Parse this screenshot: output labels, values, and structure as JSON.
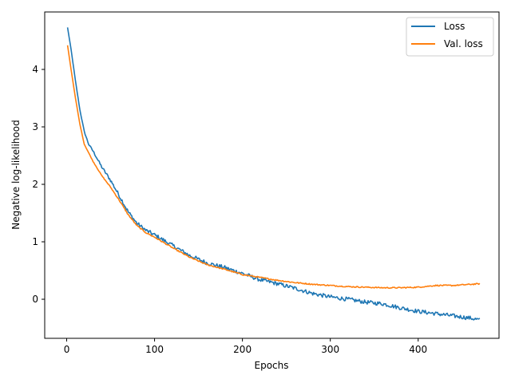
{
  "chart_data": {
    "type": "line",
    "xlabel": "Epochs",
    "ylabel": "Negative log-likelihood",
    "xlim": [
      -25,
      492
    ],
    "ylim": [
      -0.68,
      5.0
    ],
    "xticks": [
      0,
      100,
      200,
      300,
      400
    ],
    "yticks": [
      0,
      1,
      2,
      3,
      4
    ],
    "legend_position": "top-right",
    "grid": false,
    "series": [
      {
        "name": "Loss",
        "color": "#1f77b4",
        "noise": 0.035,
        "x": [
          1,
          5,
          10,
          15,
          20,
          25,
          30,
          40,
          50,
          60,
          70,
          80,
          90,
          100,
          120,
          140,
          160,
          180,
          200,
          220,
          240,
          260,
          280,
          300,
          320,
          340,
          360,
          380,
          400,
          420,
          440,
          460,
          470
        ],
        "y": [
          4.73,
          4.35,
          3.8,
          3.3,
          2.92,
          2.7,
          2.58,
          2.3,
          2.07,
          1.8,
          1.52,
          1.32,
          1.2,
          1.12,
          0.94,
          0.76,
          0.63,
          0.55,
          0.45,
          0.34,
          0.27,
          0.19,
          0.1,
          0.04,
          0.0,
          -0.05,
          -0.08,
          -0.15,
          -0.21,
          -0.25,
          -0.29,
          -0.33,
          -0.36
        ]
      },
      {
        "name": "Val. loss",
        "color": "#ff7f0e",
        "noise": 0.01,
        "x": [
          1,
          5,
          10,
          15,
          20,
          25,
          30,
          40,
          50,
          60,
          70,
          80,
          90,
          100,
          120,
          140,
          160,
          180,
          200,
          220,
          240,
          260,
          280,
          300,
          320,
          340,
          360,
          380,
          400,
          420,
          440,
          460,
          470
        ],
        "y": [
          4.42,
          4.0,
          3.5,
          3.05,
          2.7,
          2.55,
          2.4,
          2.15,
          1.95,
          1.72,
          1.47,
          1.28,
          1.16,
          1.08,
          0.9,
          0.73,
          0.6,
          0.52,
          0.43,
          0.38,
          0.33,
          0.29,
          0.26,
          0.24,
          0.22,
          0.21,
          0.2,
          0.2,
          0.21,
          0.24,
          0.24,
          0.26,
          0.27
        ]
      }
    ]
  }
}
